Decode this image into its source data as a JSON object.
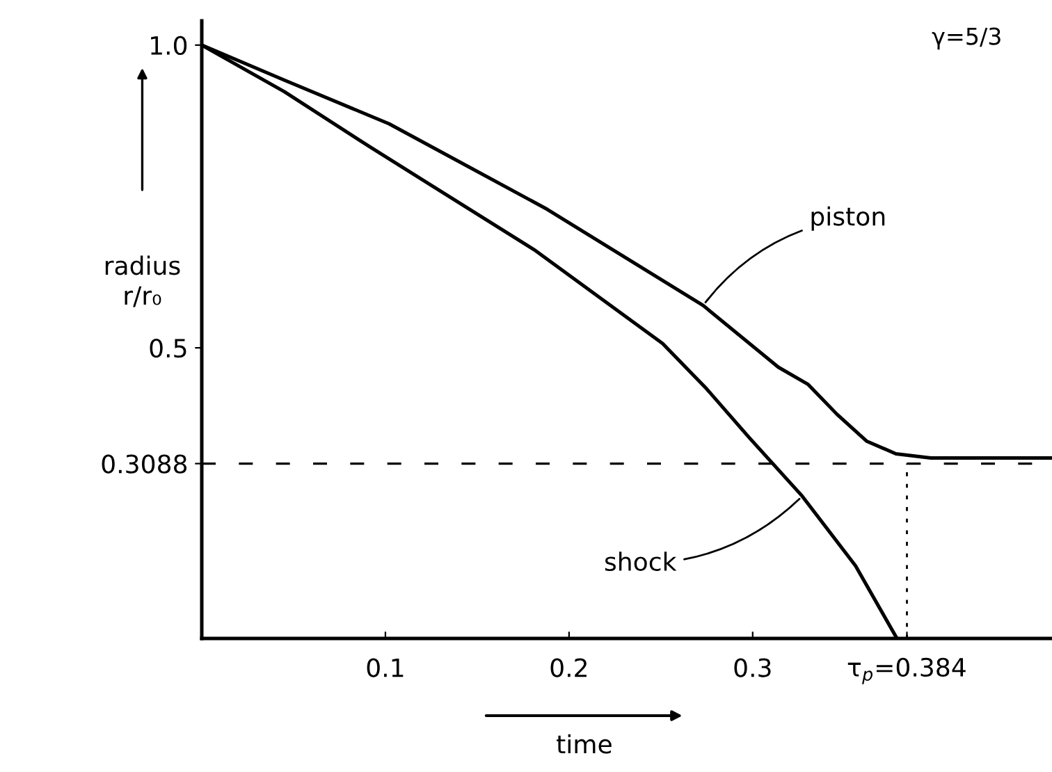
{
  "chart_data": {
    "type": "line",
    "xlabel": "time",
    "ylabel": "radius\nr/r₀",
    "x": [
      0,
      0.045,
      0.102,
      0.188,
      0.273,
      0.314,
      0.33,
      0.346,
      0.362,
      0.378,
      0.397,
      0.463
    ],
    "series": [
      {
        "color": "#000000",
        "values": [
          1.0,
          0.942,
          0.87,
          0.729,
          0.57,
          0.468,
          0.44,
          0.39,
          0.346,
          0.325,
          0.318,
          0.318
        ]
      },
      {
        "color": "#000000",
        "x": [
          0,
          0.045,
          0.092,
          0.181,
          0.251,
          0.275,
          0.298,
          0.327,
          0.356,
          0.378
        ],
        "values": [
          1.0,
          0.923,
          0.831,
          0.662,
          0.507,
          0.432,
          0.352,
          0.255,
          0.14,
          0.023
        ]
      }
    ],
    "annotations": [
      "γ=5/3",
      {
        "text": "piston",
        "x": 0.273,
        "y": 0.57
      },
      {
        "text": "shock",
        "x": 0.327,
        "y": 0.255
      }
    ],
    "ref_lines": [
      {
        "axis": "y",
        "value": 0.3088,
        "line_style": "dashed"
      },
      {
        "axis": "x",
        "value": 0.384,
        "line_style": "dotted"
      }
    ],
    "xlim": [
      0,
      0.463
    ],
    "ylim": [
      0.02,
      1.04
    ],
    "xticks": [
      0.1,
      0.2,
      0.3,
      {
        "value": 0.384,
        "label": "τ$_{p}$=0.384"
      }
    ],
    "yticks": [
      {
        "value": 1.0,
        "label": "1.0"
      },
      0.5,
      0.3088
    ],
    "grid": false,
    "legend": false,
    "line_style": "solid",
    "marker": "none"
  }
}
